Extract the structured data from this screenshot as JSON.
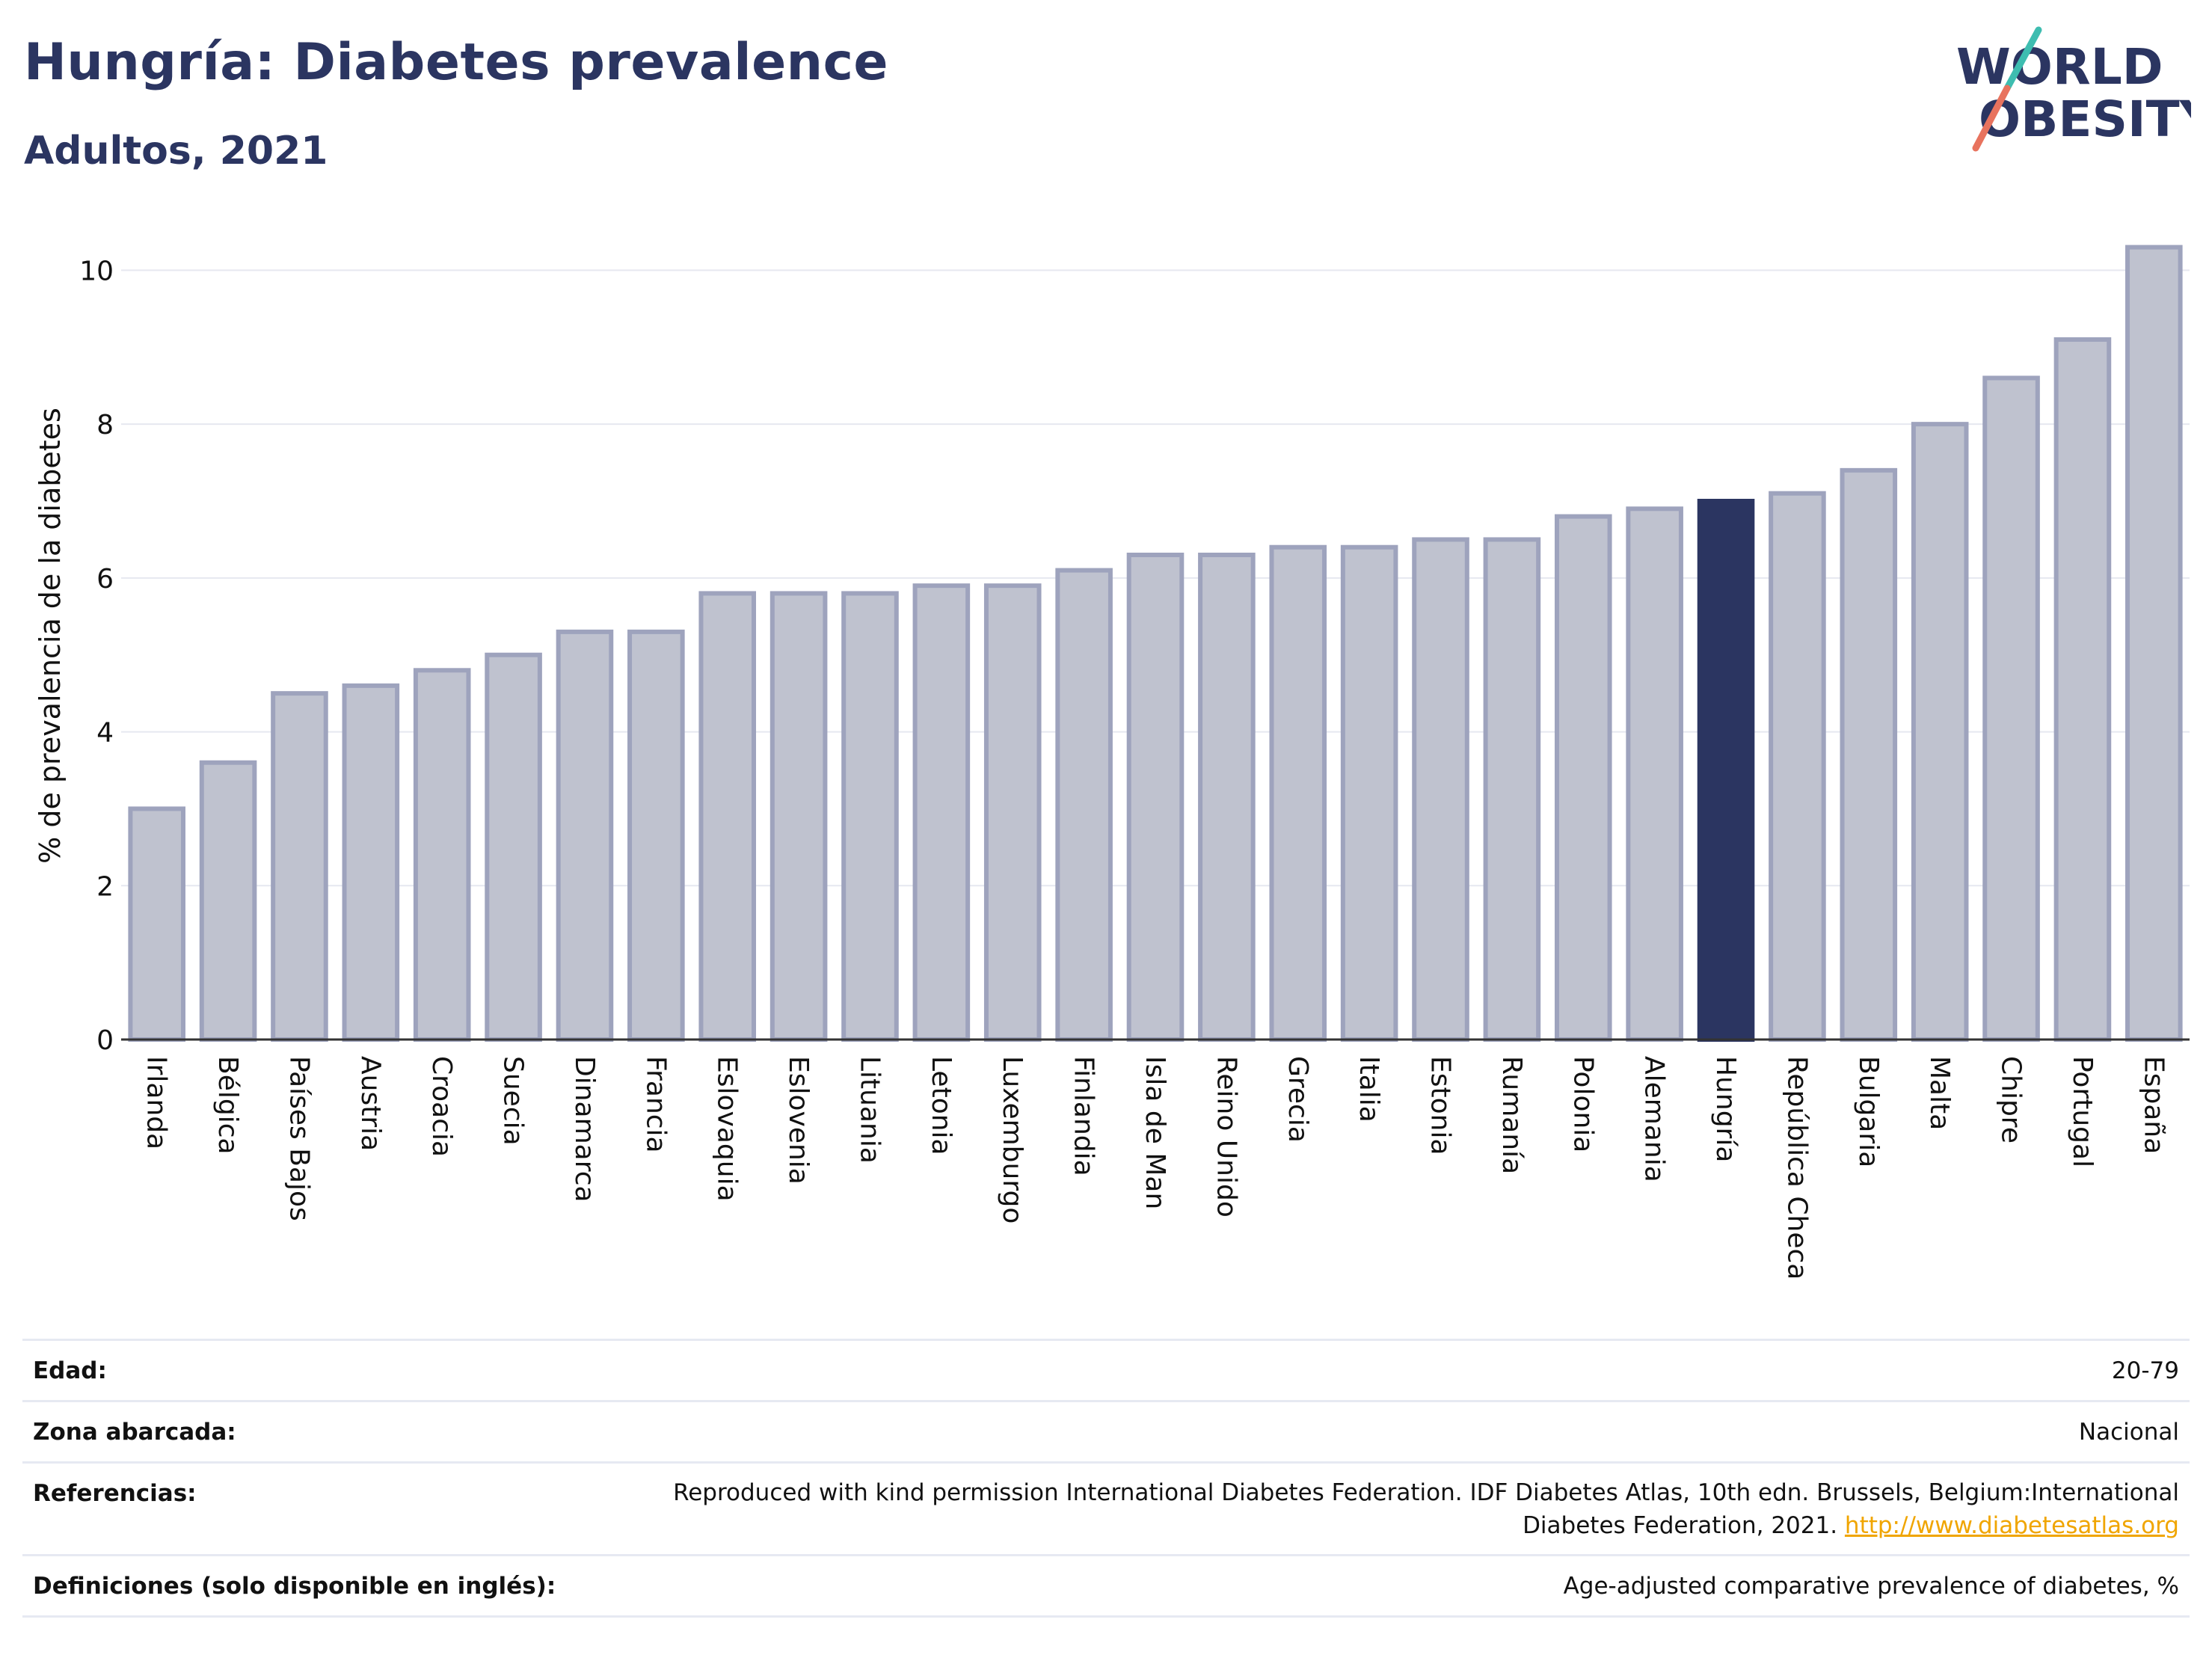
{
  "header": {
    "title": "Hungría: Diabetes prevalence",
    "subtitle": "Adultos, 2021"
  },
  "logo": {
    "line1": "WORLD",
    "line2": "OBESITY"
  },
  "colors": {
    "bar": "#bfc2cf",
    "bar_border": "#9ea3bd",
    "highlight": "#2b3561",
    "grid": "#e6e8f0",
    "text": "#111111",
    "logo_text": "#2b3561",
    "logo_teal": "#3ebdb0",
    "logo_coral": "#e8735e"
  },
  "chart_data": {
    "type": "bar",
    "ylabel": "% de prevalencia de la diabetes",
    "xlabel": "",
    "ylim": [
      0,
      10.5
    ],
    "yticks": [
      0,
      2,
      4,
      6,
      8,
      10
    ],
    "grid": true,
    "highlight": "Hungría",
    "categories": [
      "Irlanda",
      "Bélgica",
      "Países Bajos",
      "Austria",
      "Croacia",
      "Suecia",
      "Dinamarca",
      "Francia",
      "Eslovaquia",
      "Eslovenia",
      "Lituania",
      "Letonia",
      "Luxemburgo",
      "Finlandia",
      "Isla de Man",
      "Reino Unido",
      "Grecia",
      "Italia",
      "Estonia",
      "Rumanía",
      "Polonia",
      "Alemania",
      "Hungría",
      "República Checa",
      "Bulgaria",
      "Malta",
      "Chipre",
      "Portugal",
      "España"
    ],
    "values": [
      3.0,
      3.6,
      4.5,
      4.6,
      4.8,
      5.0,
      5.3,
      5.3,
      5.8,
      5.8,
      5.8,
      5.9,
      5.9,
      6.1,
      6.3,
      6.3,
      6.4,
      6.4,
      6.5,
      6.5,
      6.8,
      6.9,
      7.0,
      7.1,
      7.4,
      8.0,
      8.6,
      9.1,
      10.3
    ]
  },
  "info": {
    "rows": [
      {
        "label": "Edad:",
        "value": "20-79"
      },
      {
        "label": "Zona abarcada:",
        "value": "Nacional"
      },
      {
        "label": "Referencias:",
        "value_line1": "Reproduced with kind permission International Diabetes Federation.  IDF Diabetes Atlas, 10th edn. Brussels, Belgium:International",
        "value_line2": "Diabetes Federation, 2021. ",
        "link": "http://www.diabetesatlas.org"
      },
      {
        "label": "Definiciones (solo disponible en inglés):",
        "value": "Age-adjusted comparative prevalence of diabetes, %"
      }
    ]
  }
}
